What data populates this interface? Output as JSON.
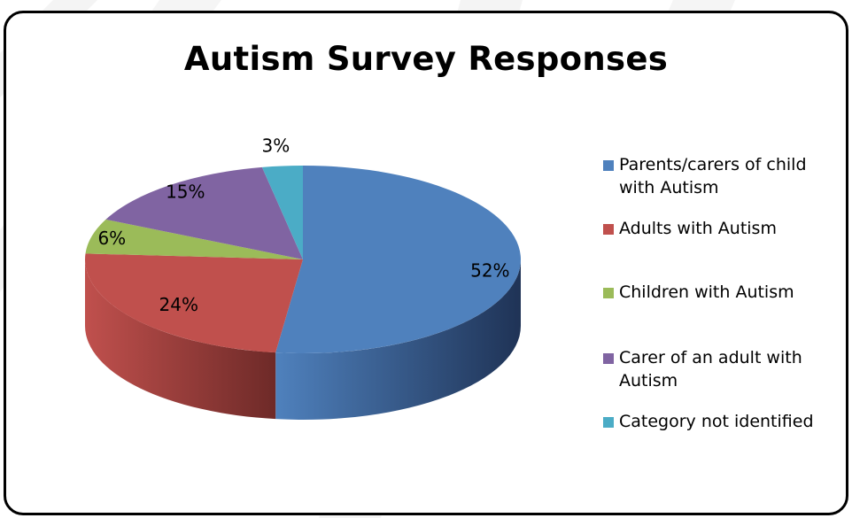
{
  "chart_data": {
    "type": "pie",
    "title": "Autism Survey Responses",
    "slices": [
      {
        "label": "Parents/carers of child with Autism",
        "value": 52,
        "display": "52%",
        "color": "#4F81BD",
        "side": "#1F3356"
      },
      {
        "label": "Adults with Autism",
        "value": 24,
        "display": "24%",
        "color": "#C0504D",
        "side": "#6E2A28"
      },
      {
        "label": "Children with Autism",
        "value": 6,
        "display": "6%",
        "color": "#9BBB59",
        "side": "#5B7232"
      },
      {
        "label": "Carer of an adult with Autism",
        "value": 15,
        "display": "15%",
        "color": "#8064A2",
        "side": "#47365E"
      },
      {
        "label": "Category not identified",
        "value": 3,
        "display": "3%",
        "color": "#4BACC6",
        "side": "#2A6878"
      }
    ],
    "legend_position": "right",
    "style": "3d"
  }
}
